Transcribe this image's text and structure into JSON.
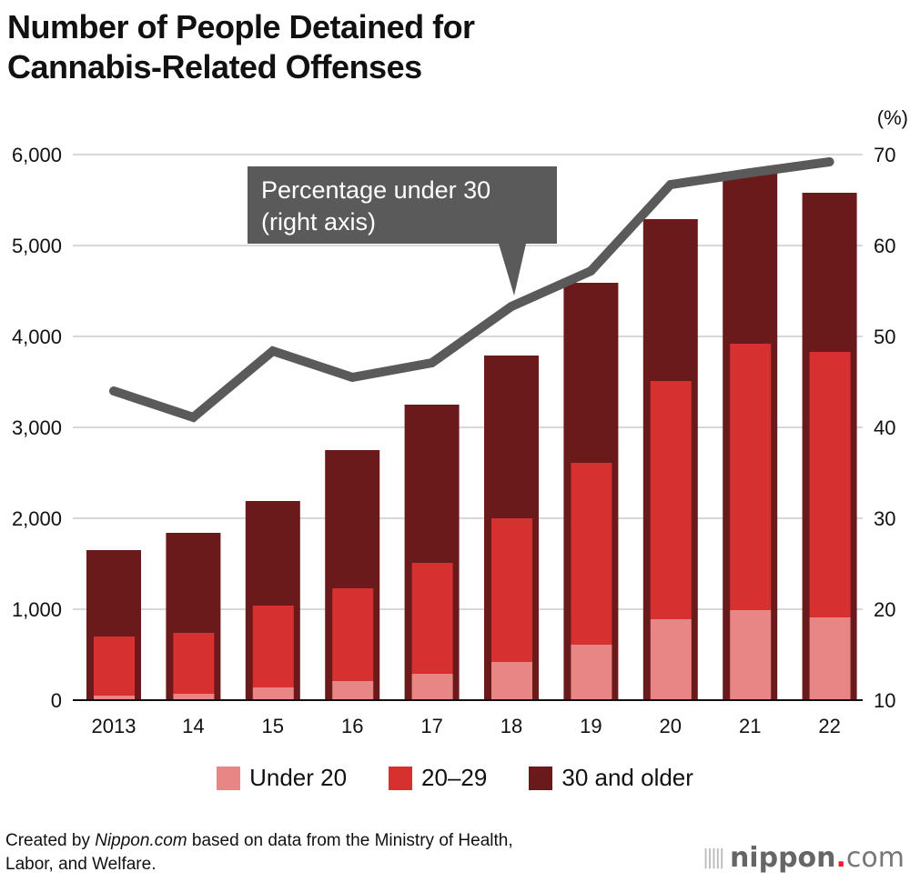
{
  "title_line1": "Number of People Detained for",
  "title_line2": "Cannabis-Related Offenses",
  "callout_line1": "Percentage under 30",
  "callout_line2": "(right axis)",
  "footer_prefix": "Created by ",
  "footer_brand": "Nippon.com",
  "footer_suffix": " based on data from the Ministry of Health,",
  "footer_line2": "Labor, and Welfare.",
  "logo": {
    "name": "nippon",
    "dot": ".",
    "tld": "com"
  },
  "colors": {
    "under20": "#e88585",
    "age20_29": "#d63031",
    "over30": "#6b1a1c",
    "line": "#5a5a5a",
    "grid": "#cccccc"
  },
  "chart_data": {
    "type": "bar",
    "stacked": true,
    "title": "Number of People Detained for Cannabis-Related Offenses",
    "categories": [
      "2013",
      "14",
      "15",
      "16",
      "17",
      "18",
      "19",
      "20",
      "21",
      "22"
    ],
    "series": [
      {
        "name": "Under 20",
        "values": [
          50,
          70,
          140,
          210,
          290,
          420,
          610,
          890,
          990,
          910
        ]
      },
      {
        "name": "20–29",
        "values": [
          650,
          670,
          900,
          1020,
          1220,
          1580,
          2000,
          2620,
          2930,
          2920
        ]
      },
      {
        "name": "30 and older",
        "values": [
          950,
          1100,
          1150,
          1520,
          1740,
          1790,
          1980,
          1780,
          1890,
          1750
        ]
      }
    ],
    "line_series": {
      "name": "Percentage under 30 (right axis)",
      "axis": "right",
      "values": [
        44.0,
        41.1,
        48.4,
        45.5,
        47.1,
        53.3,
        57.2,
        66.7,
        68.0,
        69.2
      ]
    },
    "ylim": [
      0,
      6000
    ],
    "yticks": [
      "0",
      "1,000",
      "2,000",
      "3,000",
      "4,000",
      "5,000",
      "6,000"
    ],
    "y2lim": [
      10,
      70
    ],
    "y2ticks": [
      "10",
      "20",
      "30",
      "40",
      "50",
      "60",
      "70"
    ],
    "y2label": "(%)",
    "grid": true,
    "legend_position": "bottom"
  }
}
